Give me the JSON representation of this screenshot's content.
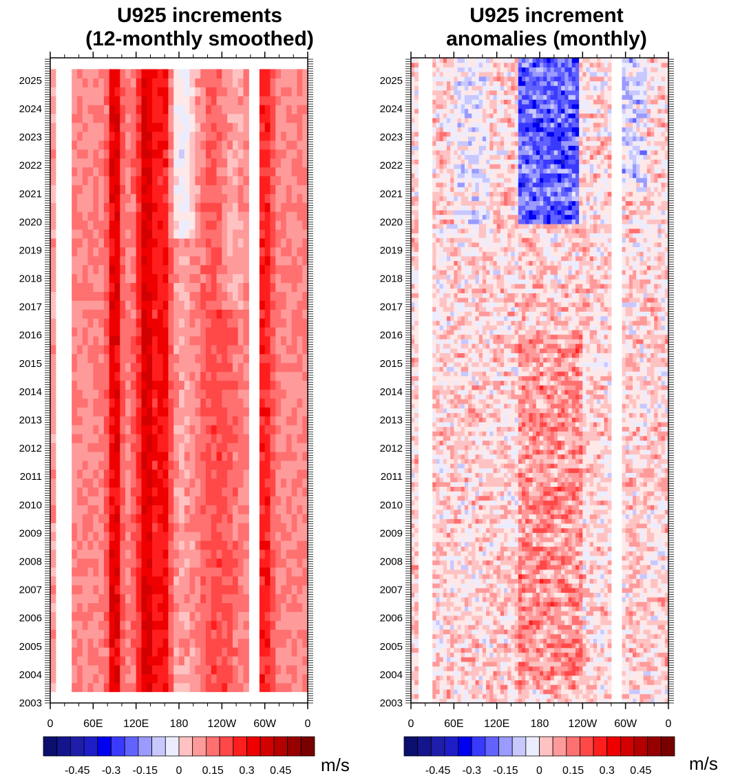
{
  "panels": [
    {
      "title_line1": "U925 increments",
      "title_line2": "(12-monthly smoothed)",
      "unit": "m/s"
    },
    {
      "title_line1": "U925 increment",
      "title_line2": "anomalies (monthly)",
      "unit": "m/s"
    }
  ],
  "chart_data": [
    {
      "type": "heatmap",
      "title": "U925 increments (12-monthly smoothed)",
      "x_tick_labels": [
        "0",
        "60E",
        "120E",
        "180",
        "120W",
        "60W",
        "0"
      ],
      "x_ticks_deg": [
        0,
        60,
        120,
        180,
        240,
        300,
        360
      ],
      "xlim": [
        0,
        360
      ],
      "y_tick_labels": [
        "2003",
        "2004",
        "2005",
        "2006",
        "2007",
        "2008",
        "2009",
        "2010",
        "2011",
        "2012",
        "2013",
        "2014",
        "2015",
        "2016",
        "2017",
        "2018",
        "2019",
        "2020",
        "2021",
        "2022",
        "2023",
        "2024",
        "2025"
      ],
      "ylim": [
        2003,
        2025.8
      ],
      "data_extent_years": [
        2003.4,
        2025.4
      ],
      "missing_lon_bands": [
        [
          10,
          30
        ],
        [
          280,
          295
        ]
      ],
      "colorbar": {
        "labels": [
          "-0.45",
          "-0.3",
          "-0.15",
          "0",
          "0.15",
          "0.3",
          "0.45"
        ],
        "label_values": [
          -0.45,
          -0.3,
          -0.15,
          0,
          0.15,
          0.3,
          0.45
        ],
        "levels": [
          -0.525,
          -0.45,
          -0.375,
          -0.3,
          -0.225,
          -0.15,
          -0.075,
          0,
          0.075,
          0.15,
          0.225,
          0.3,
          0.375,
          0.45,
          0.525
        ],
        "unit": "m/s"
      },
      "features": [
        {
          "lon": 90,
          "value": 0.48,
          "note": "persistent strong positive band"
        },
        {
          "lon": 135,
          "value": 0.5,
          "note": "strongest positive band"
        },
        {
          "lon": 160,
          "value": 0.42
        },
        {
          "lon": 185,
          "value": -0.15,
          "years": [
            2020,
            2025.4
          ],
          "note": "weak negative patches"
        },
        {
          "lon": 300,
          "value": 0.4
        }
      ]
    },
    {
      "type": "heatmap",
      "title": "U925 increment anomalies (monthly)",
      "x_tick_labels": [
        "0",
        "60E",
        "120E",
        "180",
        "120W",
        "60W",
        "0"
      ],
      "x_ticks_deg": [
        0,
        60,
        120,
        180,
        240,
        300,
        360
      ],
      "xlim": [
        0,
        360
      ],
      "y_tick_labels": [
        "2003",
        "2004",
        "2005",
        "2006",
        "2007",
        "2008",
        "2009",
        "2010",
        "2011",
        "2012",
        "2013",
        "2014",
        "2015",
        "2016",
        "2017",
        "2018",
        "2019",
        "2020",
        "2021",
        "2022",
        "2023",
        "2024",
        "2025"
      ],
      "ylim": [
        2003,
        2025.8
      ],
      "data_extent_years": [
        2003,
        2025.8
      ],
      "missing_lon_bands": [
        [
          10,
          30
        ],
        [
          280,
          295
        ]
      ],
      "colorbar": {
        "labels": [
          "-0.45",
          "-0.3",
          "-0.15",
          "0",
          "0.15",
          "0.3",
          "0.45"
        ],
        "label_values": [
          -0.45,
          -0.3,
          -0.15,
          0,
          0.15,
          0.3,
          0.45
        ],
        "levels": [
          -0.525,
          -0.45,
          -0.375,
          -0.3,
          -0.225,
          -0.15,
          -0.075,
          0,
          0.075,
          0.15,
          0.225,
          0.3,
          0.375,
          0.45,
          0.525
        ],
        "unit": "m/s"
      },
      "features": [
        {
          "lon_range": [
            150,
            230
          ],
          "years": [
            2020,
            2025.8
          ],
          "value": -0.4,
          "note": "strong negative anomaly"
        },
        {
          "lon_range": [
            150,
            240
          ],
          "years": [
            2003.5,
            2016
          ],
          "value": 0.2,
          "note": "positive anomalies"
        }
      ]
    }
  ],
  "colors": {
    "palette": [
      "#0a0f6e",
      "#14148c",
      "#1e1eaa",
      "#1e1ec8",
      "#0000f0",
      "#3a3aff",
      "#6262ff",
      "#9a9aff",
      "#c8c8ff",
      "#ececff",
      "#ffe8e8",
      "#ffc2c2",
      "#ff9a9a",
      "#ff7070",
      "#ff4848",
      "#ff1e1e",
      "#ee0000",
      "#d20000",
      "#b40000",
      "#960000",
      "#780000"
    ]
  }
}
